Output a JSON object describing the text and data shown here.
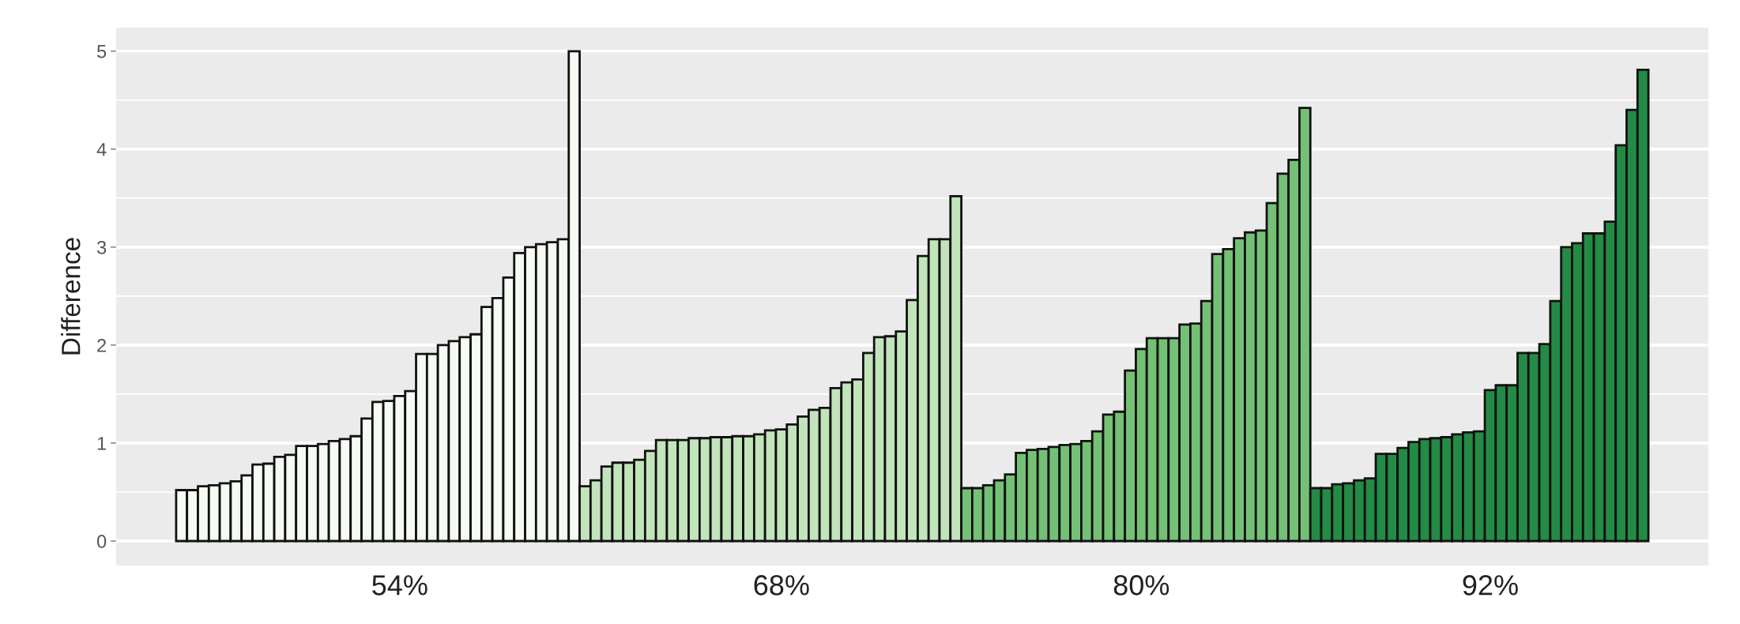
{
  "chart_data": {
    "type": "bar",
    "ylabel": "Difference",
    "categories": [
      null,
      null,
      null,
      null,
      null,
      null,
      null,
      null,
      null,
      null,
      null,
      null,
      null,
      null,
      null,
      null,
      null,
      null,
      null,
      null,
      "54%",
      null,
      null,
      null,
      null,
      null,
      null,
      null,
      null,
      null,
      null,
      null,
      null,
      null,
      null,
      null,
      null,
      null,
      null,
      null,
      null,
      null,
      null,
      null,
      null,
      null,
      null,
      null,
      null,
      null,
      null,
      null,
      null,
      null,
      null,
      "68%",
      null,
      null,
      null,
      null,
      null,
      null,
      null,
      null,
      null,
      null,
      null,
      null,
      null,
      null,
      null,
      null,
      null,
      null,
      null,
      null,
      null,
      null,
      null,
      null,
      null,
      null,
      null,
      null,
      null,
      null,
      null,
      null,
      "80%",
      null,
      null,
      null,
      null,
      null,
      null,
      null,
      null,
      null,
      null,
      null,
      null,
      null,
      null,
      null,
      null,
      null,
      null,
      null,
      null,
      null,
      null,
      null,
      null,
      null,
      null,
      null,
      null,
      null,
      null,
      null,
      "92%",
      null,
      null,
      null,
      null,
      null,
      null,
      null,
      null,
      null,
      null,
      null,
      null,
      null,
      null
    ],
    "values": [
      0.52,
      0.52,
      0.56,
      0.57,
      0.59,
      0.61,
      0.67,
      0.78,
      0.79,
      0.86,
      0.88,
      0.97,
      0.97,
      0.99,
      1.02,
      1.04,
      1.07,
      1.25,
      1.42,
      1.43,
      1.48,
      1.53,
      1.91,
      1.91,
      2.0,
      2.04,
      2.08,
      2.11,
      2.39,
      2.48,
      2.69,
      2.94,
      3.0,
      3.03,
      3.05,
      3.08,
      5.0,
      0.56,
      0.62,
      0.76,
      0.8,
      0.8,
      0.83,
      0.92,
      1.03,
      1.03,
      1.03,
      1.05,
      1.05,
      1.06,
      1.06,
      1.07,
      1.07,
      1.09,
      1.13,
      1.14,
      1.19,
      1.27,
      1.34,
      1.36,
      1.56,
      1.62,
      1.65,
      1.92,
      2.08,
      2.09,
      2.14,
      2.46,
      2.91,
      3.08,
      3.08,
      3.52,
      0.54,
      0.54,
      0.57,
      0.62,
      0.68,
      0.9,
      0.93,
      0.94,
      0.96,
      0.98,
      0.99,
      1.02,
      1.12,
      1.29,
      1.32,
      1.74,
      1.96,
      2.07,
      2.07,
      2.07,
      2.21,
      2.22,
      2.45,
      2.93,
      2.98,
      3.09,
      3.15,
      3.17,
      3.45,
      3.75,
      3.89,
      4.42,
      0.54,
      0.54,
      0.58,
      0.59,
      0.62,
      0.64,
      0.89,
      0.89,
      0.95,
      1.01,
      1.04,
      1.05,
      1.06,
      1.09,
      1.11,
      1.12,
      1.54,
      1.59,
      1.59,
      1.92,
      1.92,
      2.01,
      2.45,
      3.0,
      3.04,
      3.14,
      3.14,
      3.26,
      4.04,
      4.4,
      4.81
    ],
    "colors": [
      "#f5faf2",
      "#f5faf2",
      "#f5faf2",
      "#f5faf2",
      "#f5faf2",
      "#f5faf2",
      "#f5faf2",
      "#f5faf2",
      "#f5faf2",
      "#f5faf2",
      "#f5faf2",
      "#f5faf2",
      "#f5faf2",
      "#f5faf2",
      "#f5faf2",
      "#f5faf2",
      "#f5faf2",
      "#f5faf2",
      "#f5faf2",
      "#f5faf2",
      "#f5faf2",
      "#f5faf2",
      "#f5faf2",
      "#f5faf2",
      "#f5faf2",
      "#f5faf2",
      "#f5faf2",
      "#f5faf2",
      "#f5faf2",
      "#f5faf2",
      "#f5faf2",
      "#f5faf2",
      "#f5faf2",
      "#f5faf2",
      "#f5faf2",
      "#f5faf2",
      "#f5faf2",
      "#c2e4bb",
      "#c2e4bb",
      "#c2e4bb",
      "#c2e4bb",
      "#c2e4bb",
      "#c2e4bb",
      "#c2e4bb",
      "#c2e4bb",
      "#c2e4bb",
      "#c2e4bb",
      "#c2e4bb",
      "#c2e4bb",
      "#c2e4bb",
      "#c2e4bb",
      "#c2e4bb",
      "#c2e4bb",
      "#c2e4bb",
      "#c2e4bb",
      "#c2e4bb",
      "#c2e4bb",
      "#c2e4bb",
      "#c2e4bb",
      "#c2e4bb",
      "#c2e4bb",
      "#c2e4bb",
      "#c2e4bb",
      "#c2e4bb",
      "#c2e4bb",
      "#c2e4bb",
      "#c2e4bb",
      "#c2e4bb",
      "#c2e4bb",
      "#c2e4bb",
      "#c2e4bb",
      "#c2e4bb",
      "#74c176",
      "#74c176",
      "#74c176",
      "#74c176",
      "#74c176",
      "#74c176",
      "#74c176",
      "#74c176",
      "#74c176",
      "#74c176",
      "#74c176",
      "#74c176",
      "#74c176",
      "#74c176",
      "#74c176",
      "#74c176",
      "#74c176",
      "#74c176",
      "#74c176",
      "#74c176",
      "#74c176",
      "#74c176",
      "#74c176",
      "#74c176",
      "#74c176",
      "#74c176",
      "#74c176",
      "#74c176",
      "#74c176",
      "#74c176",
      "#74c176",
      "#74c176",
      "#238b45",
      "#238b45",
      "#238b45",
      "#238b45",
      "#238b45",
      "#238b45",
      "#238b45",
      "#238b45",
      "#238b45",
      "#238b45",
      "#238b45",
      "#238b45",
      "#238b45",
      "#238b45",
      "#238b45",
      "#238b45",
      "#238b45",
      "#238b45",
      "#238b45",
      "#238b45",
      "#238b45",
      "#238b45",
      "#238b45",
      "#238b45",
      "#238b45",
      "#238b45",
      "#238b45",
      "#238b45",
      "#238b45",
      "#238b45",
      "#238b45"
    ],
    "ylim": [
      -0.25,
      5.24
    ],
    "yticks": [
      0,
      1,
      2,
      3,
      4,
      5
    ],
    "grid": "y"
  }
}
